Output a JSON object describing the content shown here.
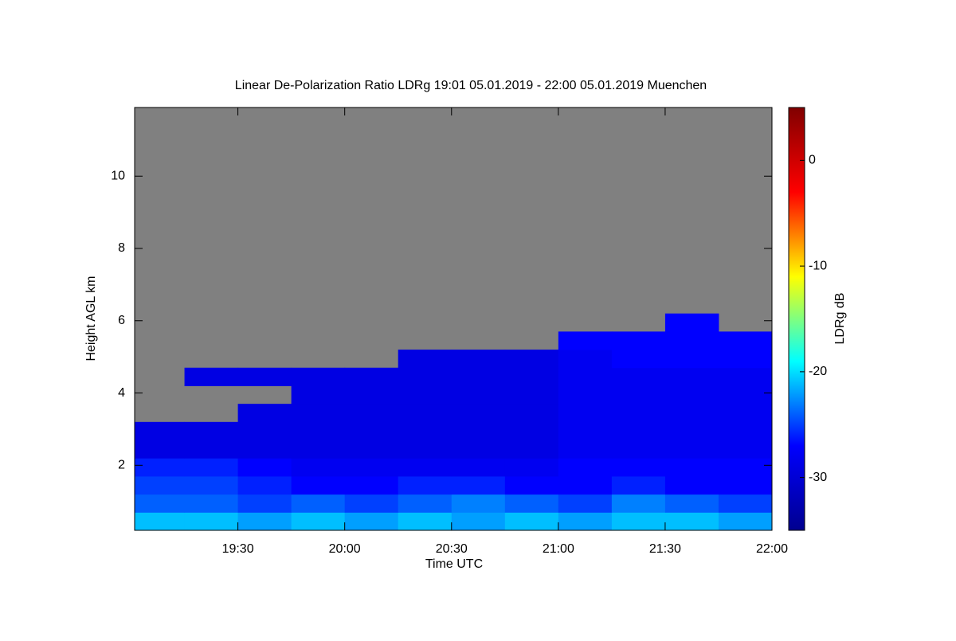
{
  "chart_data": {
    "type": "heatmap",
    "title": "Linear De-Polarization Ratio LDRg   19:01 05.01.2019 - 22:00 05.01.2019 Muenchen",
    "xlabel": "Time UTC",
    "ylabel": "Height AGL km",
    "colorbar_label": "LDRg dB",
    "xlim": [
      19.0167,
      22.0
    ],
    "xticks": [
      {
        "value": 19.5,
        "label": "19:30"
      },
      {
        "value": 20.0,
        "label": "20:00"
      },
      {
        "value": 20.5,
        "label": "20:30"
      },
      {
        "value": 21.0,
        "label": "21:00"
      },
      {
        "value": 21.5,
        "label": "21:30"
      },
      {
        "value": 22.0,
        "label": "22:00"
      }
    ],
    "ylim": [
      0.2,
      11.9
    ],
    "yticks": [
      2,
      4,
      6,
      8,
      10
    ],
    "zlim": [
      -35,
      5
    ],
    "zticks": [
      -30,
      -20,
      -10,
      0
    ],
    "colormap": [
      "#00008f",
      "#0000ff",
      "#00ffff",
      "#ffff00",
      "#ff0000",
      "#800000"
    ],
    "missing_color": "#808080",
    "xbins": [
      19.0167,
      19.25,
      19.5,
      19.75,
      20.0,
      20.25,
      20.5,
      20.75,
      21.0,
      21.25,
      21.5,
      21.75,
      22.0
    ],
    "ybins": [
      0.2,
      0.7,
      1.2,
      1.7,
      2.2,
      2.7,
      3.2,
      3.7,
      4.2,
      4.7,
      5.2,
      5.7,
      6.2
    ],
    "z": [
      [
        -21,
        -21,
        -22,
        -21,
        -22,
        -21,
        -22,
        -21,
        -22,
        -21,
        -21,
        -22
      ],
      [
        -24,
        -24,
        -25,
        -24,
        -25,
        -24,
        -23,
        -24,
        -25,
        -23,
        -24,
        -25
      ],
      [
        -25,
        -25,
        -26,
        -27,
        -27,
        -26,
        -26,
        -27,
        -27,
        -26,
        -27,
        -27
      ],
      [
        -26,
        -26,
        -27,
        -28,
        -28,
        -28,
        -28,
        -28,
        -27,
        -27,
        -27,
        -27
      ],
      [
        -29,
        -29,
        -29,
        -29,
        -29,
        -29,
        -29,
        -29,
        -28,
        -28,
        -28,
        -28
      ],
      [
        -29,
        -29,
        -29,
        -29,
        -29,
        -29,
        -29,
        -29,
        -28,
        -28,
        -28,
        -28
      ],
      [
        null,
        null,
        -29,
        -29,
        -29,
        -29,
        -29,
        -29,
        -28,
        -28,
        -28,
        -28
      ],
      [
        null,
        null,
        null,
        -29,
        -29,
        -29,
        -29,
        -29,
        -28,
        -28,
        -28,
        -28
      ],
      [
        null,
        -29,
        -29,
        -29,
        -29,
        -29,
        -29,
        -29,
        -28,
        -28,
        -28,
        -28
      ],
      [
        null,
        null,
        null,
        null,
        null,
        -29,
        -29,
        -29,
        -28,
        -27,
        -27,
        -27
      ],
      [
        null,
        null,
        null,
        null,
        null,
        null,
        null,
        null,
        -27,
        -27,
        -27,
        -27
      ],
      [
        null,
        null,
        null,
        null,
        null,
        null,
        null,
        null,
        null,
        null,
        -27,
        null
      ]
    ]
  }
}
